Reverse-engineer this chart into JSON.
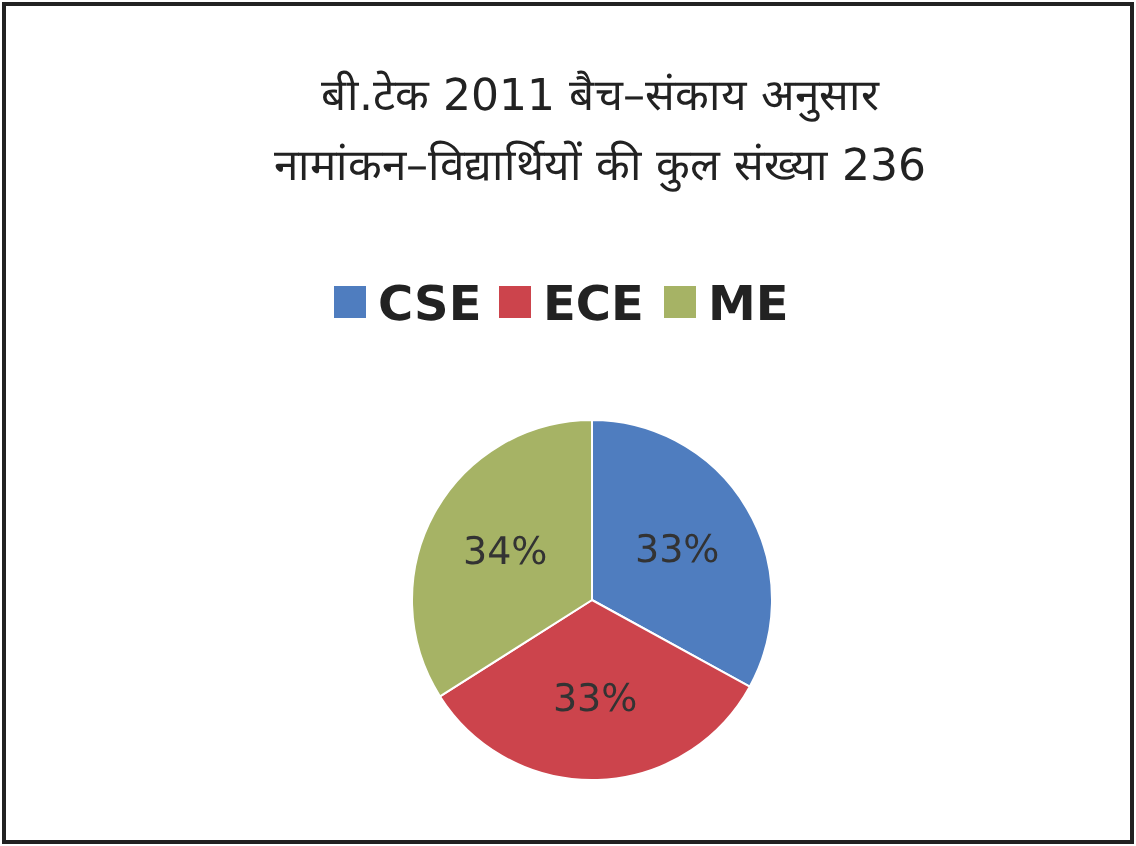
{
  "chart_data": {
    "type": "pie",
    "title": "बी.टेक 2011 बैच–संकाय अनुसार\nनामांकन–विद्यार्थियों की कुल संख्या 236",
    "categories": [
      "CSE",
      "ECE",
      "ME"
    ],
    "values": [
      33,
      33,
      34
    ],
    "value_labels": [
      "33%",
      "33%",
      "34%"
    ],
    "colors": [
      "#4f7dbf",
      "#cc444c",
      "#a6b365"
    ],
    "legend": "top"
  }
}
